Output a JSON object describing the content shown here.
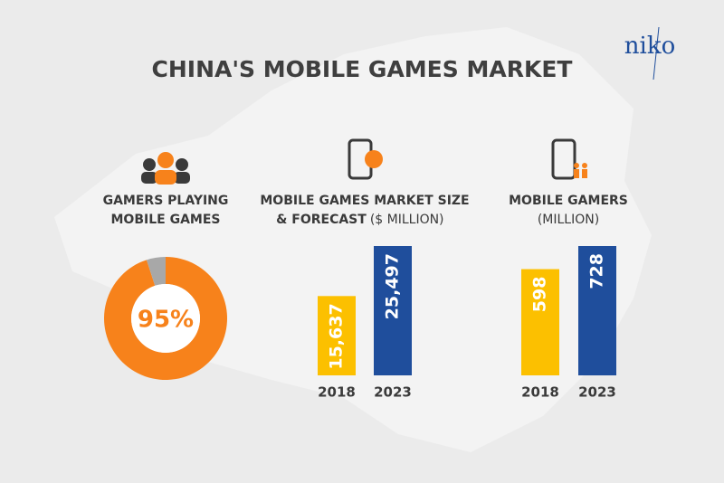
{
  "title": "CHINA'S MOBILE GAMES MARKET",
  "logo": "niko",
  "chart_data": [
    {
      "type": "pie",
      "title": [
        "GAMERS PLAYING",
        "MOBILE GAMES"
      ],
      "values": [
        95,
        5
      ],
      "value_labels": [
        "95%",
        null
      ],
      "colors": [
        "#f7821b",
        "#a8a8a8"
      ]
    },
    {
      "type": "bar",
      "title": [
        "MOBILE GAMES MARKET SIZE",
        "& FORECAST"
      ],
      "unit": "($ MILLION)",
      "categories": [
        "2018",
        "2023"
      ],
      "values": [
        15637,
        25497
      ],
      "value_labels": [
        "15,637",
        "25,497"
      ],
      "colors": [
        "#fcc000",
        "#1f4e9c"
      ]
    },
    {
      "type": "bar",
      "title": [
        "MOBILE GAMERS"
      ],
      "unit": "(MILLION)",
      "categories": [
        "2018",
        "2023"
      ],
      "values": [
        598,
        728
      ],
      "colors": [
        "#fcc000",
        "#1f4e9c"
      ]
    }
  ]
}
